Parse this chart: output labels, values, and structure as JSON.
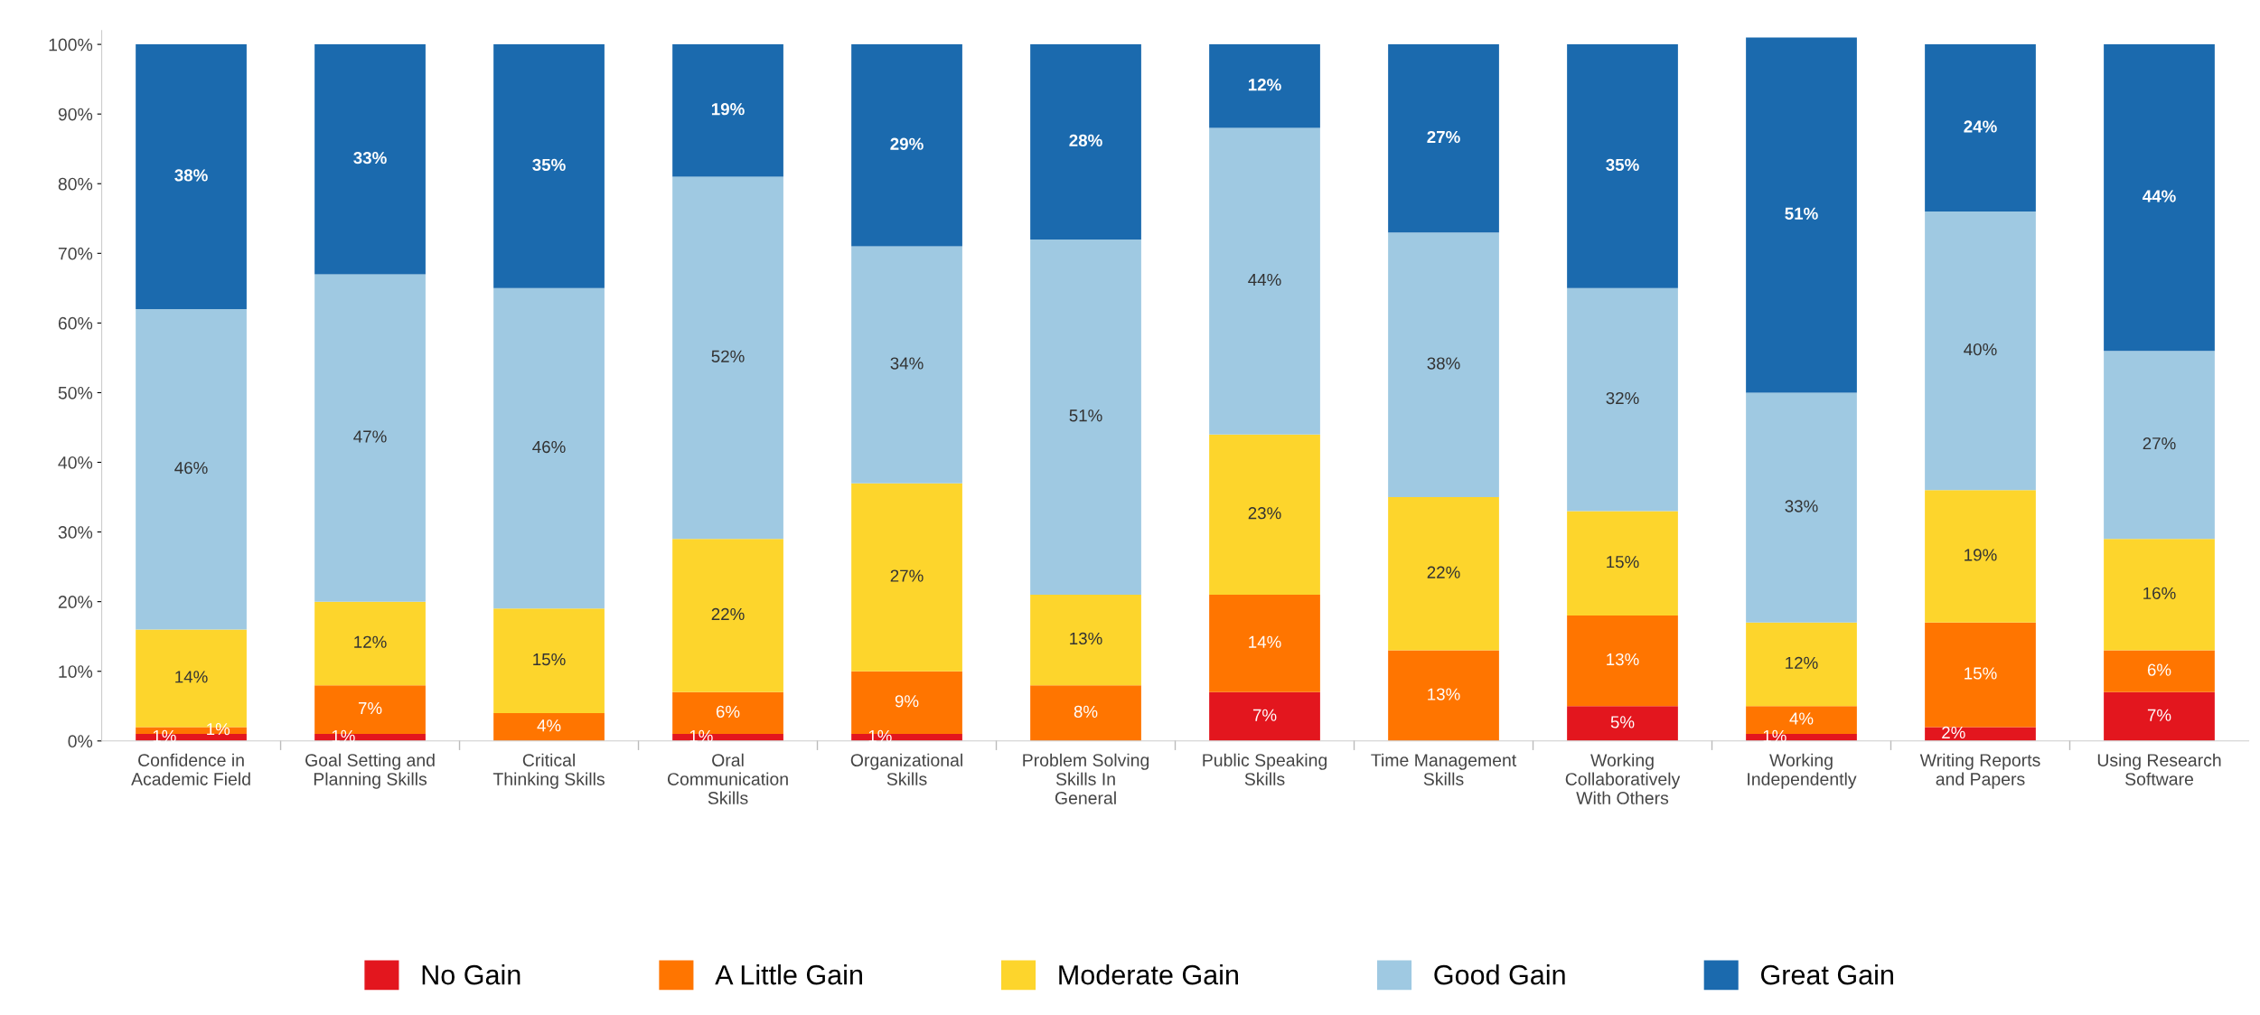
{
  "chart_data": {
    "type": "bar",
    "stacked": true,
    "categories": [
      "Confidence in\nAcademic Field",
      "Goal Setting and\nPlanning Skills",
      "Critical\nThinking Skills",
      "Oral\nCommunication\nSkills",
      "Organizational\nSkills",
      "Problem Solving\nSkills In\nGeneral",
      "Public Speaking\nSkills",
      "Time Management\nSkills",
      "Working\nCollaboratively\nWith Others",
      "Working\nIndependently",
      "Writing Reports\nand Papers",
      "Using Research\nSoftware"
    ],
    "series": [
      {
        "name": "No Gain",
        "color": "#e3161e",
        "values": [
          1,
          1,
          0,
          1,
          1,
          0,
          7,
          0,
          5,
          1,
          2,
          7
        ],
        "value_labels": [
          "1%",
          "1%",
          null,
          "1%",
          "1%",
          null,
          "7%",
          null,
          "5%",
          "1%",
          "2%",
          "7%"
        ]
      },
      {
        "name": "A Little Gain",
        "color": "#ff7500",
        "values": [
          1,
          7,
          4,
          6,
          9,
          8,
          14,
          13,
          13,
          4,
          15,
          6
        ],
        "value_labels": [
          "1%",
          "7%",
          "4%",
          "6%",
          "9%",
          "8%",
          "14%",
          "13%",
          "13%",
          "4%",
          "15%",
          "6%"
        ]
      },
      {
        "name": "Moderate Gain",
        "color": "#fdd52c",
        "values": [
          14,
          12,
          15,
          22,
          27,
          13,
          23,
          22,
          15,
          12,
          19,
          16
        ],
        "value_labels": [
          "14%",
          "12%",
          "15%",
          "22%",
          "27%",
          "13%",
          "23%",
          "22%",
          "15%",
          "12%",
          "19%",
          "16%"
        ]
      },
      {
        "name": "Good Gain",
        "color": "#9fc9e2",
        "values": [
          46,
          47,
          46,
          52,
          34,
          51,
          44,
          38,
          32,
          33,
          40,
          27
        ],
        "value_labels": [
          "46%",
          "47%",
          "46%",
          "52%",
          "34%",
          "51%",
          "44%",
          "38%",
          "32%",
          "33%",
          "40%",
          "27%"
        ]
      },
      {
        "name": "Great Gain",
        "color": "#1b6aae",
        "values": [
          38,
          33,
          35,
          19,
          29,
          28,
          12,
          27,
          35,
          51,
          24,
          44
        ],
        "value_labels": [
          "38%",
          "33%",
          "35%",
          "19%",
          "29%",
          "28%",
          "12%",
          "27%",
          "35%",
          "51%",
          "24%",
          "44%"
        ]
      }
    ],
    "ylim": [
      0,
      102
    ],
    "yticks": [
      {
        "value": 0,
        "label": "0%"
      },
      {
        "value": 10,
        "label": "10%"
      },
      {
        "value": 20,
        "label": "20%"
      },
      {
        "value": 30,
        "label": "30%"
      },
      {
        "value": 40,
        "label": "40%"
      },
      {
        "value": 50,
        "label": "50%"
      },
      {
        "value": 60,
        "label": "60%"
      },
      {
        "value": 70,
        "label": "70%"
      },
      {
        "value": 80,
        "label": "80%"
      },
      {
        "value": 90,
        "label": "90%"
      },
      {
        "value": 100,
        "label": "100%"
      }
    ],
    "grid": false,
    "legend": "bottom"
  }
}
